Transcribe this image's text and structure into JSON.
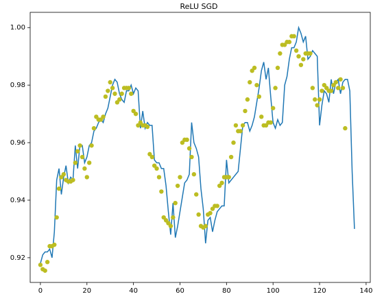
{
  "chart_data": {
    "type": "line",
    "title": "ReLU SGD",
    "series": [
      {
        "style": "line",
        "color": "#1f77b4",
        "x": [
          0,
          1,
          2,
          3,
          4,
          5,
          6,
          7,
          8,
          9,
          10,
          11,
          12,
          13,
          14,
          15,
          16,
          17,
          18,
          19,
          20,
          21,
          22,
          23,
          24,
          25,
          26,
          27,
          28,
          29,
          30,
          31,
          32,
          33,
          34,
          35,
          36,
          37,
          38,
          39,
          40,
          41,
          42,
          43,
          44,
          45,
          46,
          47,
          48,
          49,
          50,
          51,
          52,
          53,
          54,
          55,
          56,
          57,
          58,
          59,
          60,
          61,
          62,
          63,
          64,
          65,
          66,
          67,
          68,
          69,
          70,
          71,
          72,
          73,
          74,
          75,
          76,
          77,
          78,
          79,
          80,
          81,
          82,
          83,
          84,
          85,
          86,
          87,
          88,
          89,
          90,
          91,
          92,
          93,
          94,
          95,
          96,
          97,
          98,
          99,
          100,
          101,
          102,
          103,
          104,
          105,
          106,
          107,
          108,
          109,
          110,
          111,
          112,
          113,
          114,
          115,
          116,
          117,
          118,
          119,
          120,
          121,
          122,
          123,
          124,
          125,
          126,
          127,
          128,
          129,
          130,
          131,
          132,
          133,
          134,
          135
        ],
        "values": [
          0.918,
          0.921,
          0.922,
          0.922,
          0.923,
          0.92,
          0.929,
          0.947,
          0.951,
          0.942,
          0.948,
          0.952,
          0.946,
          0.948,
          0.947,
          0.959,
          0.951,
          0.959,
          0.959,
          0.953,
          0.955,
          0.959,
          0.96,
          0.964,
          0.965,
          0.967,
          0.968,
          0.967,
          0.97,
          0.972,
          0.976,
          0.98,
          0.982,
          0.981,
          0.977,
          0.975,
          0.974,
          0.978,
          0.978,
          0.98,
          0.977,
          0.979,
          0.978,
          0.965,
          0.971,
          0.965,
          0.967,
          0.966,
          0.966,
          0.954,
          0.953,
          0.953,
          0.951,
          0.951,
          0.945,
          0.936,
          0.928,
          0.939,
          0.927,
          0.931,
          0.936,
          0.941,
          0.946,
          0.947,
          0.949,
          0.967,
          0.96,
          0.958,
          0.955,
          0.944,
          0.937,
          0.925,
          0.933,
          0.934,
          0.929,
          0.933,
          0.936,
          0.937,
          0.938,
          0.938,
          0.954,
          0.946,
          0.947,
          0.948,
          0.949,
          0.95,
          0.958,
          0.966,
          0.967,
          0.967,
          0.964,
          0.966,
          0.969,
          0.974,
          0.979,
          0.985,
          0.988,
          0.982,
          0.986,
          0.976,
          0.967,
          0.965,
          0.968,
          0.966,
          0.967,
          0.98,
          0.983,
          0.989,
          0.993,
          0.993,
          0.995,
          1.0,
          0.998,
          0.995,
          0.997,
          0.989,
          0.99,
          0.992,
          0.991,
          0.99,
          0.966,
          0.973,
          0.978,
          0.977,
          0.974,
          0.982,
          0.977,
          0.981,
          0.982,
          0.977,
          0.981,
          0.982,
          0.982,
          0.978,
          0.95,
          0.93
        ]
      },
      {
        "style": "scatter",
        "color": "#bcbd22",
        "x": [
          0,
          1,
          2,
          3,
          4,
          5,
          6,
          7,
          8,
          9,
          10,
          11,
          12,
          13,
          14,
          15,
          16,
          17,
          18,
          19,
          20,
          21,
          22,
          23,
          24,
          25,
          26,
          27,
          28,
          29,
          30,
          31,
          32,
          33,
          34,
          35,
          36,
          37,
          38,
          39,
          40,
          41,
          42,
          43,
          44,
          45,
          46,
          47,
          48,
          49,
          50,
          51,
          52,
          53,
          54,
          55,
          56,
          57,
          58,
          59,
          60,
          61,
          62,
          63,
          64,
          65,
          66,
          67,
          68,
          69,
          70,
          71,
          72,
          73,
          74,
          75,
          76,
          77,
          78,
          79,
          80,
          81,
          82,
          83,
          84,
          85,
          86,
          87,
          88,
          89,
          90,
          91,
          92,
          93,
          94,
          95,
          96,
          97,
          98,
          99,
          100,
          101,
          102,
          103,
          104,
          105,
          106,
          107,
          108,
          109,
          110,
          111,
          112,
          113,
          114,
          115,
          116,
          117,
          118,
          119,
          120,
          121,
          122,
          123,
          124,
          125,
          126,
          127,
          128,
          129,
          130,
          131
        ],
        "values": [
          0.9175,
          0.916,
          0.9155,
          0.9185,
          0.924,
          0.924,
          0.9245,
          0.934,
          0.944,
          0.948,
          0.949,
          0.947,
          0.9465,
          0.9465,
          0.947,
          0.953,
          0.957,
          0.959,
          0.955,
          0.951,
          0.948,
          0.953,
          0.959,
          0.965,
          0.969,
          0.968,
          0.968,
          0.969,
          0.976,
          0.978,
          0.981,
          0.979,
          0.977,
          0.974,
          0.975,
          0.977,
          0.979,
          0.979,
          0.979,
          0.977,
          0.971,
          0.97,
          0.966,
          0.967,
          0.966,
          0.966,
          0.9655,
          0.956,
          0.955,
          0.952,
          0.951,
          0.948,
          0.943,
          0.934,
          0.933,
          0.932,
          0.931,
          0.934,
          0.939,
          0.945,
          0.948,
          0.96,
          0.961,
          0.961,
          0.958,
          0.955,
          0.949,
          0.942,
          0.935,
          0.931,
          0.9305,
          0.931,
          0.935,
          0.9355,
          0.937,
          0.938,
          0.938,
          0.945,
          0.946,
          0.948,
          0.948,
          0.948,
          0.955,
          0.96,
          0.966,
          0.964,
          0.964,
          0.966,
          0.971,
          0.975,
          0.981,
          0.985,
          0.986,
          0.98,
          0.976,
          0.969,
          0.966,
          0.966,
          0.967,
          0.967,
          0.972,
          0.979,
          0.986,
          0.991,
          0.994,
          0.994,
          0.995,
          0.995,
          0.997,
          0.997,
          0.992,
          0.99,
          0.987,
          0.989,
          0.991,
          0.991,
          0.991,
          0.979,
          0.975,
          0.973,
          0.975,
          0.978,
          0.98,
          0.979,
          0.978,
          0.978,
          0.98,
          0.981,
          0.979,
          0.982,
          0.979,
          0.965
        ]
      }
    ],
    "xlim": [
      -4.4,
      141.8
    ],
    "xticks": [
      0,
      20,
      40,
      60,
      80,
      100,
      120,
      140
    ],
    "ylim": [
      0.9114,
      1.0053
    ],
    "yticks": [
      {
        "value": 0.92,
        "label": "0.92"
      },
      {
        "value": 0.94,
        "label": "0.94"
      },
      {
        "value": 0.96,
        "label": "0.96"
      },
      {
        "value": 0.98,
        "label": "0.98"
      },
      {
        "value": 1.0,
        "label": "1.00"
      }
    ],
    "grid": false
  }
}
